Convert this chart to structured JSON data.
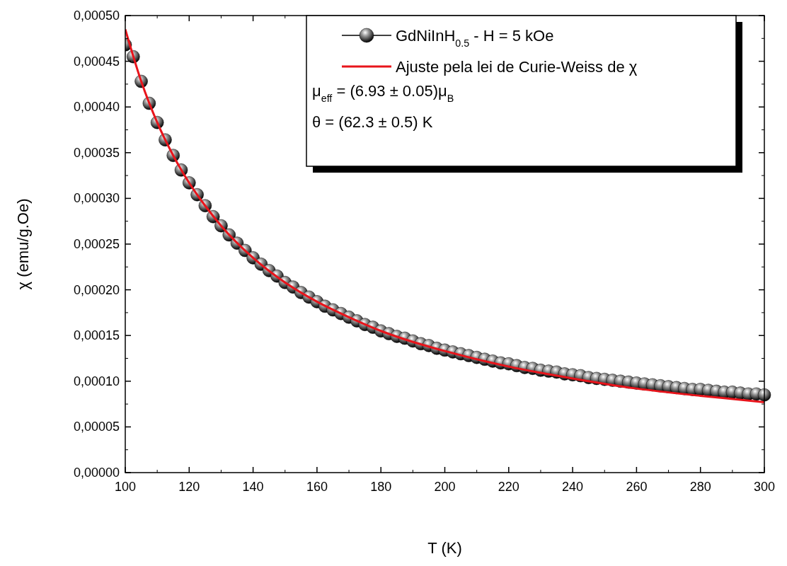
{
  "chart_data": {
    "type": "scatter",
    "xlabel": "T (K)",
    "ylabel": "χ (emu/g.Oe)",
    "xlim": [
      100,
      300
    ],
    "xticks": [
      100,
      120,
      140,
      160,
      180,
      200,
      220,
      240,
      260,
      280,
      300
    ],
    "ylim": [
      0,
      0.0005
    ],
    "yticks": [
      {
        "value": 0,
        "label": "0,00000"
      },
      {
        "value": 5e-05,
        "label": "0,00005"
      },
      {
        "value": 0.0001,
        "label": "0,00010"
      },
      {
        "value": 0.00015,
        "label": "0,00015"
      },
      {
        "value": 0.0002,
        "label": "0,00020"
      },
      {
        "value": 0.00025,
        "label": "0,00025"
      },
      {
        "value": 0.0003,
        "label": "0,00030"
      },
      {
        "value": 0.00035,
        "label": "0,00035"
      },
      {
        "value": 0.0004,
        "label": "0,00040"
      },
      {
        "value": 0.00045,
        "label": "0,00045"
      },
      {
        "value": 0.0005,
        "label": "0,00050"
      }
    ],
    "legend": "top right",
    "grid": false,
    "annotations": [
      "μ$_{eff}$ = (6.93 ± 0.05)μ$_{B}$",
      "θ = (62.3 ± 0.5) K"
    ],
    "series": [
      {
        "name": "GdNiInH$_{0.5}$ - H = 5 kOe",
        "marker": "circle",
        "color": "#000000",
        "x": [
          100,
          102.5,
          105,
          107.5,
          110,
          112.5,
          115,
          117.5,
          120,
          122.5,
          125,
          127.5,
          130,
          132.5,
          135,
          137.5,
          140,
          142.5,
          145,
          147.5,
          150,
          152.5,
          155,
          157.5,
          160,
          162.5,
          165,
          167.5,
          170,
          172.5,
          175,
          177.5,
          180,
          182.5,
          185,
          187.5,
          190,
          192.5,
          195,
          197.5,
          200,
          202.5,
          205,
          207.5,
          210,
          212.5,
          215,
          217.5,
          220,
          222.5,
          225,
          227.5,
          230,
          232.5,
          235,
          237.5,
          240,
          242.5,
          245,
          247.5,
          250,
          252.5,
          255,
          257.5,
          260,
          262.5,
          265,
          267.5,
          270,
          272.5,
          275,
          277.5,
          280,
          282.5,
          285,
          287.5,
          290,
          292.5,
          295,
          297.5,
          300
        ],
        "values": [
          0.000468,
          0.000455,
          0.000428,
          0.000404,
          0.000383,
          0.000364,
          0.000347,
          0.000331,
          0.000317,
          0.000304,
          0.000292,
          0.00028,
          0.00027,
          0.00026,
          0.000251,
          0.000243,
          0.000235,
          0.000228,
          0.000221,
          0.000215,
          0.000208,
          0.000203,
          0.000197,
          0.000192,
          0.000187,
          0.000182,
          0.000178,
          0.000174,
          0.00017,
          0.000166,
          0.000162,
          0.000159,
          0.000155,
          0.000152,
          0.000149,
          0.000147,
          0.000144,
          0.000141,
          0.000139,
          0.000136,
          0.000134,
          0.000132,
          0.00013,
          0.000128,
          0.000126,
          0.000124,
          0.000122,
          0.00012,
          0.000119,
          0.000117,
          0.000115,
          0.000114,
          0.000112,
          0.000111,
          0.00011,
          0.000108,
          0.000107,
          0.000106,
          0.000104,
          0.000103,
          0.000102,
          0.000101,
          0.0001,
          9.9e-05,
          9.8e-05,
          9.7e-05,
          9.6e-05,
          9.5e-05,
          9.4e-05,
          9.3e-05,
          9.2e-05,
          9.1e-05,
          9.1e-05,
          9e-05,
          8.9e-05,
          8.8e-05,
          8.8e-05,
          8.7e-05,
          8.6e-05,
          8.6e-05,
          8.5e-05
        ]
      },
      {
        "name": "Ajuste pela lei de Curie-Weiss de χ",
        "type": "line",
        "color": "#e8141b",
        "x": [
          100,
          105,
          110,
          115,
          120,
          125,
          130,
          140,
          150,
          160,
          170,
          180,
          190,
          200,
          220,
          240,
          260,
          280,
          300
        ],
        "values": [
          0.000485,
          0.000428,
          0.000383,
          0.000347,
          0.000317,
          0.000292,
          0.00027,
          0.000235,
          0.000208,
          0.000187,
          0.00017,
          0.000155,
          0.000143,
          0.000133,
          0.000116,
          0.000103,
          9.2e-05,
          8.4e-05,
          7.7e-05
        ]
      }
    ]
  }
}
